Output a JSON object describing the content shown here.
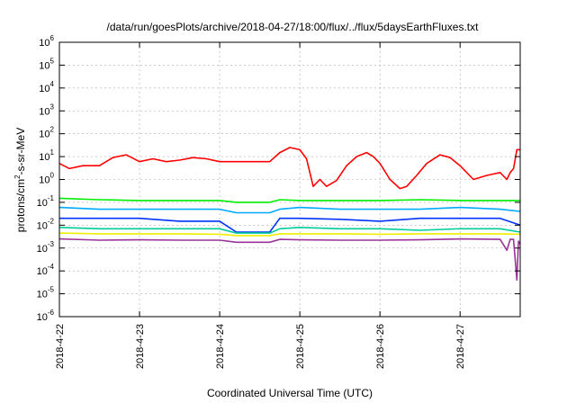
{
  "chart_data": {
    "type": "line",
    "title": "/data/run/goesPlots/archive/2018-04-27/18:00/flux/../flux/5daysEarthFluxes.txt",
    "xlabel": "Coordinated Universal Time (UTC)",
    "ylabel": "protons/cm²-s-sr-MeV",
    "ylabel_parts": {
      "pre": "protons/cm",
      "sup": "2",
      "post": "-s-sr-MeV"
    },
    "y_scale": "log",
    "ylim": [
      1e-06,
      1000000.0
    ],
    "y_ticks": [
      {
        "exp": -6,
        "base": "10",
        "sup": "-6"
      },
      {
        "exp": -5,
        "base": "10",
        "sup": "-5"
      },
      {
        "exp": -4,
        "base": "10",
        "sup": "-4"
      },
      {
        "exp": -3,
        "base": "10",
        "sup": "-3"
      },
      {
        "exp": -2,
        "base": "10",
        "sup": "-2"
      },
      {
        "exp": -1,
        "base": "10",
        "sup": "-1"
      },
      {
        "exp": 0,
        "base": "10",
        "sup": "0"
      },
      {
        "exp": 1,
        "base": "10",
        "sup": "1"
      },
      {
        "exp": 2,
        "base": "10",
        "sup": "2"
      },
      {
        "exp": 3,
        "base": "10",
        "sup": "3"
      },
      {
        "exp": 4,
        "base": "10",
        "sup": "4"
      },
      {
        "exp": 5,
        "base": "10",
        "sup": "5"
      },
      {
        "exp": 6,
        "base": "10",
        "sup": "6"
      }
    ],
    "xlim": [
      "2018-04-22",
      "2018-04-27T18:00"
    ],
    "x_ticks": [
      "2018-4-22",
      "2018-4-23",
      "2018-4-24",
      "2018-4-25",
      "2018-4-26",
      "2018-4-27"
    ],
    "grid": true,
    "legend": "none",
    "series": [
      {
        "color": "#ff0000",
        "points": [
          [
            "2018-04-22T00:00",
            5
          ],
          [
            "2018-04-22T03:00",
            3
          ],
          [
            "2018-04-22T07:00",
            4
          ],
          [
            "2018-04-22T12:00",
            4
          ],
          [
            "2018-04-22T16:00",
            9
          ],
          [
            "2018-04-22T20:00",
            12
          ],
          [
            "2018-04-23T00:00",
            6
          ],
          [
            "2018-04-23T04:00",
            8
          ],
          [
            "2018-04-23T08:00",
            6
          ],
          [
            "2018-04-23T12:00",
            7
          ],
          [
            "2018-04-23T16:00",
            9
          ],
          [
            "2018-04-23T20:00",
            8
          ],
          [
            "2018-04-24T00:00",
            6
          ],
          [
            "2018-04-24T06:00",
            6
          ],
          [
            "2018-04-24T12:00",
            6
          ],
          [
            "2018-04-24T15:00",
            6
          ],
          [
            "2018-04-24T18:00",
            15
          ],
          [
            "2018-04-24T21:00",
            25
          ],
          [
            "2018-04-25T00:00",
            20
          ],
          [
            "2018-04-25T02:00",
            8
          ],
          [
            "2018-04-25T04:00",
            0.5
          ],
          [
            "2018-04-25T06:00",
            1
          ],
          [
            "2018-04-25T08:00",
            0.5
          ],
          [
            "2018-04-25T11:00",
            0.9
          ],
          [
            "2018-04-25T14:00",
            4
          ],
          [
            "2018-04-25T17:00",
            10
          ],
          [
            "2018-04-25T20:00",
            15
          ],
          [
            "2018-04-25T22:00",
            10
          ],
          [
            "2018-04-26T00:00",
            5
          ],
          [
            "2018-04-26T03:00",
            1
          ],
          [
            "2018-04-26T06:00",
            0.4
          ],
          [
            "2018-04-26T08:00",
            0.5
          ],
          [
            "2018-04-26T11:00",
            1.5
          ],
          [
            "2018-04-26T14:00",
            5
          ],
          [
            "2018-04-26T18:00",
            12
          ],
          [
            "2018-04-26T21:00",
            9
          ],
          [
            "2018-04-27T00:00",
            4
          ],
          [
            "2018-04-27T04:00",
            1
          ],
          [
            "2018-04-27T08:00",
            1.5
          ],
          [
            "2018-04-27T12:00",
            2
          ],
          [
            "2018-04-27T14:00",
            1
          ],
          [
            "2018-04-27T15:00",
            2
          ],
          [
            "2018-04-27T16:00",
            3
          ],
          [
            "2018-04-27T17:00",
            20
          ],
          [
            "2018-04-27T18:00",
            20
          ]
        ]
      },
      {
        "color": "#00ee00",
        "points": [
          [
            "2018-04-22T00:00",
            0.15
          ],
          [
            "2018-04-22T12:00",
            0.13
          ],
          [
            "2018-04-23T00:00",
            0.12
          ],
          [
            "2018-04-23T12:00",
            0.12
          ],
          [
            "2018-04-24T00:00",
            0.12
          ],
          [
            "2018-04-24T05:00",
            0.1
          ],
          [
            "2018-04-24T15:00",
            0.1
          ],
          [
            "2018-04-24T18:00",
            0.13
          ],
          [
            "2018-04-25T00:00",
            0.12
          ],
          [
            "2018-04-25T12:00",
            0.12
          ],
          [
            "2018-04-26T00:00",
            0.12
          ],
          [
            "2018-04-26T12:00",
            0.13
          ],
          [
            "2018-04-27T00:00",
            0.12
          ],
          [
            "2018-04-27T12:00",
            0.12
          ],
          [
            "2018-04-27T18:00",
            0.12
          ]
        ]
      },
      {
        "color": "#00aaff",
        "points": [
          [
            "2018-04-22T00:00",
            0.06
          ],
          [
            "2018-04-22T12:00",
            0.05
          ],
          [
            "2018-04-23T00:00",
            0.05
          ],
          [
            "2018-04-23T12:00",
            0.05
          ],
          [
            "2018-04-24T00:00",
            0.05
          ],
          [
            "2018-04-24T05:00",
            0.035
          ],
          [
            "2018-04-24T15:00",
            0.035
          ],
          [
            "2018-04-24T18:00",
            0.05
          ],
          [
            "2018-04-25T00:00",
            0.06
          ],
          [
            "2018-04-25T12:00",
            0.05
          ],
          [
            "2018-04-26T00:00",
            0.05
          ],
          [
            "2018-04-26T12:00",
            0.05
          ],
          [
            "2018-04-27T00:00",
            0.06
          ],
          [
            "2018-04-27T12:00",
            0.05
          ],
          [
            "2018-04-27T18:00",
            0.04
          ]
        ]
      },
      {
        "color": "#0033ff",
        "points": [
          [
            "2018-04-22T00:00",
            0.02
          ],
          [
            "2018-04-22T12:00",
            0.02
          ],
          [
            "2018-04-23T00:00",
            0.02
          ],
          [
            "2018-04-23T12:00",
            0.015
          ],
          [
            "2018-04-24T00:00",
            0.015
          ],
          [
            "2018-04-24T05:00",
            0.005
          ],
          [
            "2018-04-24T15:00",
            0.005
          ],
          [
            "2018-04-24T18:00",
            0.02
          ],
          [
            "2018-04-25T00:00",
            0.02
          ],
          [
            "2018-04-25T12:00",
            0.018
          ],
          [
            "2018-04-26T00:00",
            0.015
          ],
          [
            "2018-04-26T12:00",
            0.02
          ],
          [
            "2018-04-27T00:00",
            0.02
          ],
          [
            "2018-04-27T12:00",
            0.02
          ],
          [
            "2018-04-27T18:00",
            0.01
          ]
        ]
      },
      {
        "color": "#00cc99",
        "points": [
          [
            "2018-04-22T00:00",
            0.008
          ],
          [
            "2018-04-22T12:00",
            0.007
          ],
          [
            "2018-04-23T00:00",
            0.007
          ],
          [
            "2018-04-23T12:00",
            0.007
          ],
          [
            "2018-04-24T00:00",
            0.007
          ],
          [
            "2018-04-24T05:00",
            0.0045
          ],
          [
            "2018-04-24T15:00",
            0.0045
          ],
          [
            "2018-04-24T18:00",
            0.007
          ],
          [
            "2018-04-25T00:00",
            0.008
          ],
          [
            "2018-04-25T12:00",
            0.007
          ],
          [
            "2018-04-26T00:00",
            0.007
          ],
          [
            "2018-04-26T12:00",
            0.006
          ],
          [
            "2018-04-27T00:00",
            0.007
          ],
          [
            "2018-04-27T12:00",
            0.007
          ],
          [
            "2018-04-27T18:00",
            0.005
          ]
        ]
      },
      {
        "color": "#eeee00",
        "points": [
          [
            "2018-04-22T00:00",
            0.0045
          ],
          [
            "2018-04-22T12:00",
            0.0042
          ],
          [
            "2018-04-23T00:00",
            0.0042
          ],
          [
            "2018-04-23T12:00",
            0.0042
          ],
          [
            "2018-04-24T00:00",
            0.004
          ],
          [
            "2018-04-24T05:00",
            0.0035
          ],
          [
            "2018-04-24T15:00",
            0.0035
          ],
          [
            "2018-04-24T18:00",
            0.0042
          ],
          [
            "2018-04-25T00:00",
            0.0042
          ],
          [
            "2018-04-25T12:00",
            0.0042
          ],
          [
            "2018-04-26T00:00",
            0.004
          ],
          [
            "2018-04-26T12:00",
            0.0042
          ],
          [
            "2018-04-27T00:00",
            0.0042
          ],
          [
            "2018-04-27T12:00",
            0.0042
          ],
          [
            "2018-04-27T18:00",
            0.004
          ]
        ]
      },
      {
        "color": "#993399",
        "points": [
          [
            "2018-04-22T00:00",
            0.0025
          ],
          [
            "2018-04-22T12:00",
            0.0022
          ],
          [
            "2018-04-23T00:00",
            0.0023
          ],
          [
            "2018-04-23T12:00",
            0.0022
          ],
          [
            "2018-04-24T00:00",
            0.0022
          ],
          [
            "2018-04-24T05:00",
            0.0018
          ],
          [
            "2018-04-24T15:00",
            0.0018
          ],
          [
            "2018-04-24T18:00",
            0.0024
          ],
          [
            "2018-04-25T00:00",
            0.0023
          ],
          [
            "2018-04-25T12:00",
            0.0022
          ],
          [
            "2018-04-26T00:00",
            0.0022
          ],
          [
            "2018-04-26T12:00",
            0.0023
          ],
          [
            "2018-04-27T00:00",
            0.0025
          ],
          [
            "2018-04-27T12:00",
            0.0024
          ],
          [
            "2018-04-27T14:00",
            0.0008
          ],
          [
            "2018-04-27T15:00",
            0.0024
          ],
          [
            "2018-04-27T16:00",
            0.0024
          ],
          [
            "2018-04-27T17:00",
            4e-05
          ],
          [
            "2018-04-27T17:30",
            0.002
          ],
          [
            "2018-04-27T18:00",
            0.0015
          ]
        ]
      }
    ]
  }
}
